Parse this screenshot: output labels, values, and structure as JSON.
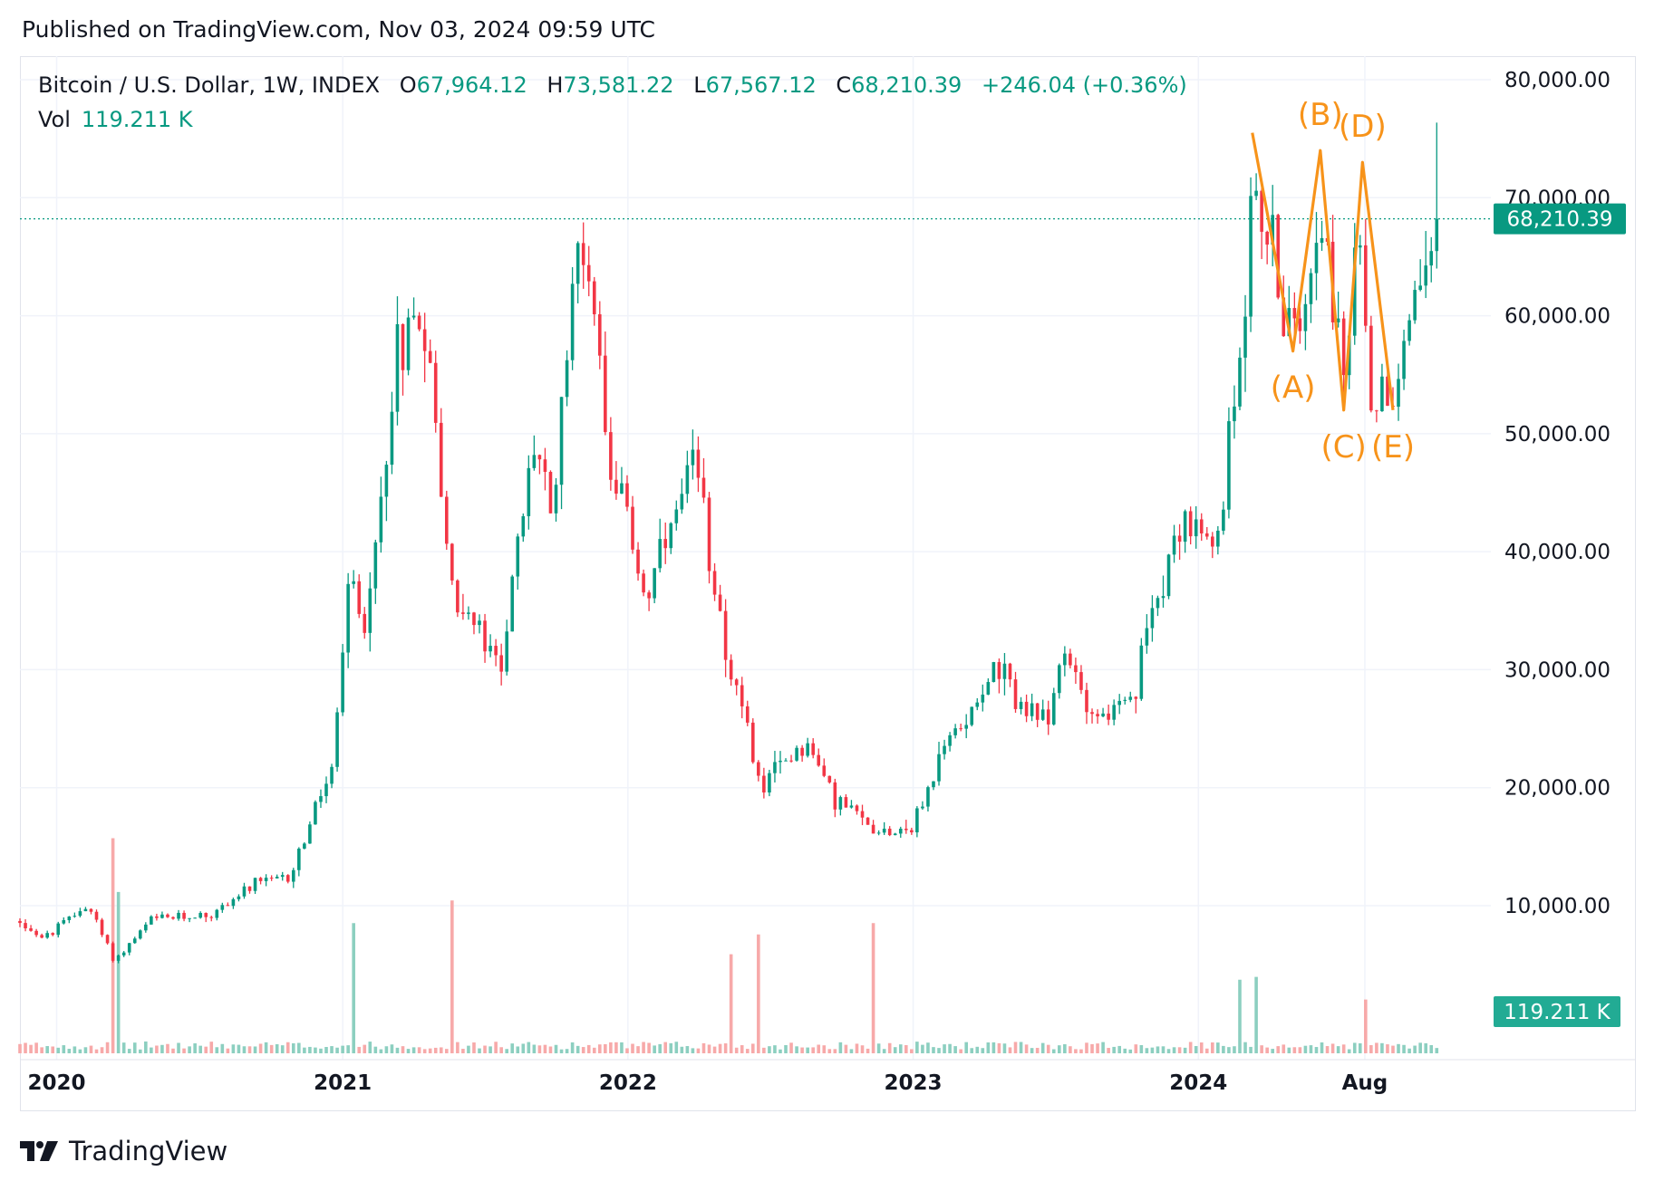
{
  "published": "Published on TradingView.com, Nov 03, 2024 09:59 UTC",
  "legend": {
    "symbol": "Bitcoin / U.S. Dollar, 1W, INDEX",
    "o_label": "O",
    "o_value": "67,964.12",
    "h_label": "H",
    "h_value": "73,581.22",
    "l_label": "L",
    "l_value": "67,567.12",
    "c_label": "C",
    "c_value": "68,210.39",
    "change": "+246.04 (+0.36%)"
  },
  "volume_legend": {
    "label": "Vol",
    "value": "119.211 K"
  },
  "footer": {
    "brand": "TradingView"
  },
  "colors": {
    "up": "#089981",
    "down": "#f23645",
    "up_volume": "#8ccfc0",
    "down_volume": "#f7a9a9",
    "wave": "#f7931a",
    "grid": "#f0f3fa"
  },
  "chart_data": {
    "type": "candlestick",
    "interval": "1W",
    "y_range": [
      0,
      80000
    ],
    "y_ticks": [
      {
        "value": 80000,
        "label": "80,000.00"
      },
      {
        "value": 70000,
        "label": "70,000.00"
      },
      {
        "value": 60000,
        "label": "60,000.00"
      },
      {
        "value": 50000,
        "label": "50,000.00"
      },
      {
        "value": 40000,
        "label": "40,000.00"
      },
      {
        "value": 30000,
        "label": "30,000.00"
      },
      {
        "value": 20000,
        "label": "20,000.00"
      },
      {
        "value": 10000,
        "label": "10,000.00"
      }
    ],
    "x_range": [
      "2019-11-15",
      "2024-11-03"
    ],
    "x_ticks": [
      {
        "date": "2020-01-01",
        "label": "2020"
      },
      {
        "date": "2021-01-01",
        "label": "2021"
      },
      {
        "date": "2022-01-01",
        "label": "2022"
      },
      {
        "date": "2023-01-01",
        "label": "2023"
      },
      {
        "date": "2024-01-01",
        "label": "2024"
      },
      {
        "date": "2024-08-01",
        "label": "Aug"
      }
    ],
    "last_price": 68210.39,
    "last_price_label": "68,210.39",
    "last_volume_label": "119.211 K",
    "price_anchors": [
      [
        "2019-11-15",
        8700
      ],
      [
        "2019-12-15",
        7200
      ],
      [
        "2020-02-10",
        10100
      ],
      [
        "2020-03-15",
        5300
      ],
      [
        "2020-05-01",
        8800
      ],
      [
        "2020-07-20",
        9300
      ],
      [
        "2020-09-01",
        11500
      ],
      [
        "2020-10-25",
        12500
      ],
      [
        "2020-12-20",
        22000
      ],
      [
        "2021-01-10",
        38000
      ],
      [
        "2021-02-01",
        33000
      ],
      [
        "2021-03-10",
        57000
      ],
      [
        "2021-04-14",
        61000
      ],
      [
        "2021-05-20",
        37000
      ],
      [
        "2021-07-20",
        30000
      ],
      [
        "2021-09-05",
        50000
      ],
      [
        "2021-09-25",
        42000
      ],
      [
        "2021-10-20",
        63000
      ],
      [
        "2021-11-10",
        66000
      ],
      [
        "2021-12-10",
        48000
      ],
      [
        "2022-01-24",
        36000
      ],
      [
        "2022-03-28",
        47000
      ],
      [
        "2022-05-12",
        30000
      ],
      [
        "2022-06-20",
        20000
      ],
      [
        "2022-08-14",
        24000
      ],
      [
        "2022-09-25",
        19000
      ],
      [
        "2022-11-10",
        16500
      ],
      [
        "2022-12-31",
        16600
      ],
      [
        "2023-02-15",
        24000
      ],
      [
        "2023-04-14",
        30000
      ],
      [
        "2023-06-15",
        25000
      ],
      [
        "2023-07-14",
        31000
      ],
      [
        "2023-08-25",
        26000
      ],
      [
        "2023-10-10",
        27000
      ],
      [
        "2023-11-01",
        35000
      ],
      [
        "2023-12-10",
        43000
      ],
      [
        "2024-01-22",
        39500
      ],
      [
        "2024-02-15",
        52000
      ],
      [
        "2024-03-13",
        72000
      ],
      [
        "2024-05-01",
        57000
      ],
      [
        "2024-06-05",
        71000
      ],
      [
        "2024-07-05",
        54000
      ],
      [
        "2024-07-29",
        69000
      ],
      [
        "2024-08-05",
        53000
      ],
      [
        "2024-09-06",
        54000
      ],
      [
        "2024-10-15",
        66000
      ],
      [
        "2024-11-03",
        68210
      ]
    ],
    "volume_spikes": [
      [
        "2020-03-15",
        7.6
      ],
      [
        "2020-03-22",
        5.7
      ],
      [
        "2021-01-15",
        4.6
      ],
      [
        "2021-05-20",
        5.4
      ],
      [
        "2022-05-10",
        3.5
      ],
      [
        "2022-06-15",
        4.2
      ],
      [
        "2022-11-10",
        4.6
      ],
      [
        "2024-02-25",
        2.6
      ],
      [
        "2024-03-15",
        2.7
      ],
      [
        "2024-08-05",
        1.9
      ]
    ],
    "annotations": [
      {
        "label": "(A)",
        "date": "2024-05-01",
        "price": 57000
      },
      {
        "label": "(B)",
        "date": "2024-06-05",
        "price": 74000
      },
      {
        "label": "(C)",
        "date": "2024-07-05",
        "price": 52000
      },
      {
        "label": "(D)",
        "date": "2024-07-29",
        "price": 73000
      },
      {
        "label": "(E)",
        "date": "2024-09-06",
        "price": 52000
      }
    ],
    "wave_path": [
      [
        "2024-03-10",
        75500
      ],
      [
        "2024-05-01",
        57000
      ],
      [
        "2024-06-05",
        74000
      ],
      [
        "2024-07-05",
        52000
      ],
      [
        "2024-07-29",
        73000
      ],
      [
        "2024-09-06",
        52000
      ]
    ]
  }
}
